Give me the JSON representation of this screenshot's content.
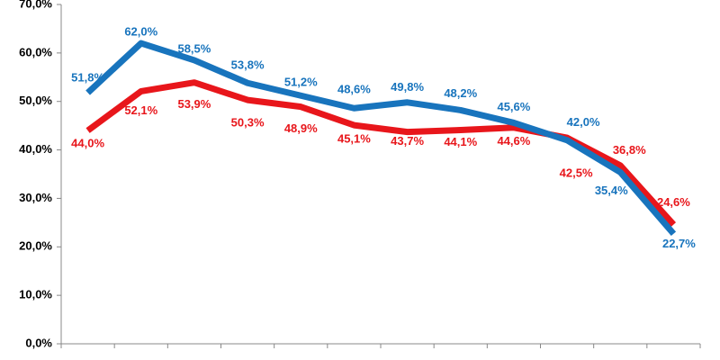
{
  "chart_data": {
    "type": "line",
    "categories": [
      null,
      null,
      null,
      null,
      null,
      null,
      null,
      null,
      null,
      null,
      null,
      null
    ],
    "series": [
      {
        "color": "#1874bd",
        "values": [
          51.8,
          62.0,
          58.5,
          53.8,
          51.2,
          48.6,
          49.8,
          48.2,
          45.6,
          42.0,
          35.4,
          22.7
        ],
        "value_labels": [
          "51,8%",
          "62,0%",
          "58,5%",
          "53,8%",
          "51,2%",
          "48,6%",
          "49,8%",
          "48,2%",
          "45,6%",
          "42,0%",
          "35,4%",
          "22,7%"
        ]
      },
      {
        "color": "#e8161b",
        "values": [
          44.0,
          52.1,
          53.9,
          50.3,
          48.9,
          45.1,
          43.7,
          44.1,
          44.6,
          42.5,
          36.8,
          24.6
        ],
        "value_labels": [
          "44,0%",
          "52,1%",
          "53,9%",
          "50,3%",
          "48,9%",
          "45,1%",
          "43,7%",
          "44,1%",
          "44,6%",
          "42,5%",
          "36,8%",
          "24,6%"
        ]
      }
    ],
    "ylim": [
      0,
      70
    ],
    "yticks": [
      {
        "value": 0,
        "label": "0,0%"
      },
      {
        "value": 10,
        "label": "10,0%"
      },
      {
        "value": 20,
        "label": "20,0%"
      },
      {
        "value": 30,
        "label": "30,0%"
      },
      {
        "value": 40,
        "label": "40,0%"
      },
      {
        "value": 50,
        "label": "50,0%"
      },
      {
        "value": 60,
        "label": "60,0%"
      },
      {
        "value": 70,
        "label": "70,0%"
      }
    ],
    "grid": false
  }
}
